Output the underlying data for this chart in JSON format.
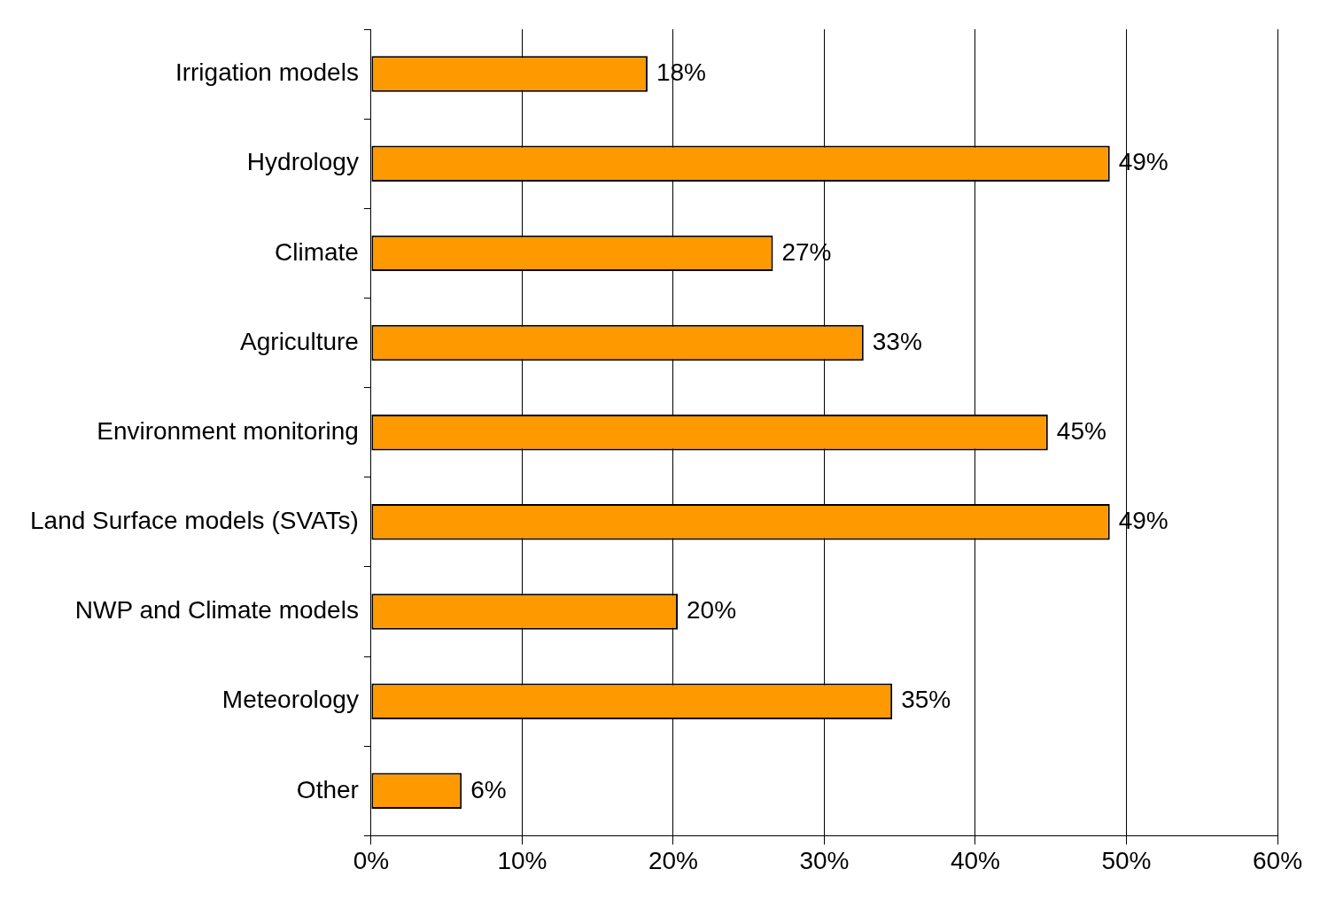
{
  "chart_data": {
    "type": "bar",
    "orientation": "horizontal",
    "categories": [
      "Irrigation models",
      "Hydrology",
      "Climate",
      "Agriculture",
      "Environment monitoring",
      "Land Surface models (SVATs)",
      "NWP and Climate models",
      "Meteorology",
      "Other"
    ],
    "values": [
      18.3,
      48.9,
      26.6,
      32.6,
      44.8,
      48.9,
      20.3,
      34.5,
      6.0
    ],
    "value_labels": [
      "18%",
      "49%",
      "27%",
      "33%",
      "45%",
      "49%",
      "20%",
      "35%",
      "6%"
    ],
    "color": "#ff9900",
    "xlim": [
      0,
      60
    ],
    "xticks": [
      {
        "value": 0,
        "label": "0%"
      },
      {
        "value": 10,
        "label": "10%"
      },
      {
        "value": 20,
        "label": "20%"
      },
      {
        "value": 30,
        "label": "30%"
      },
      {
        "value": 40,
        "label": "40%"
      },
      {
        "value": 50,
        "label": "50%"
      },
      {
        "value": 60,
        "label": "60%"
      }
    ],
    "grid": "x",
    "legend": false
  }
}
